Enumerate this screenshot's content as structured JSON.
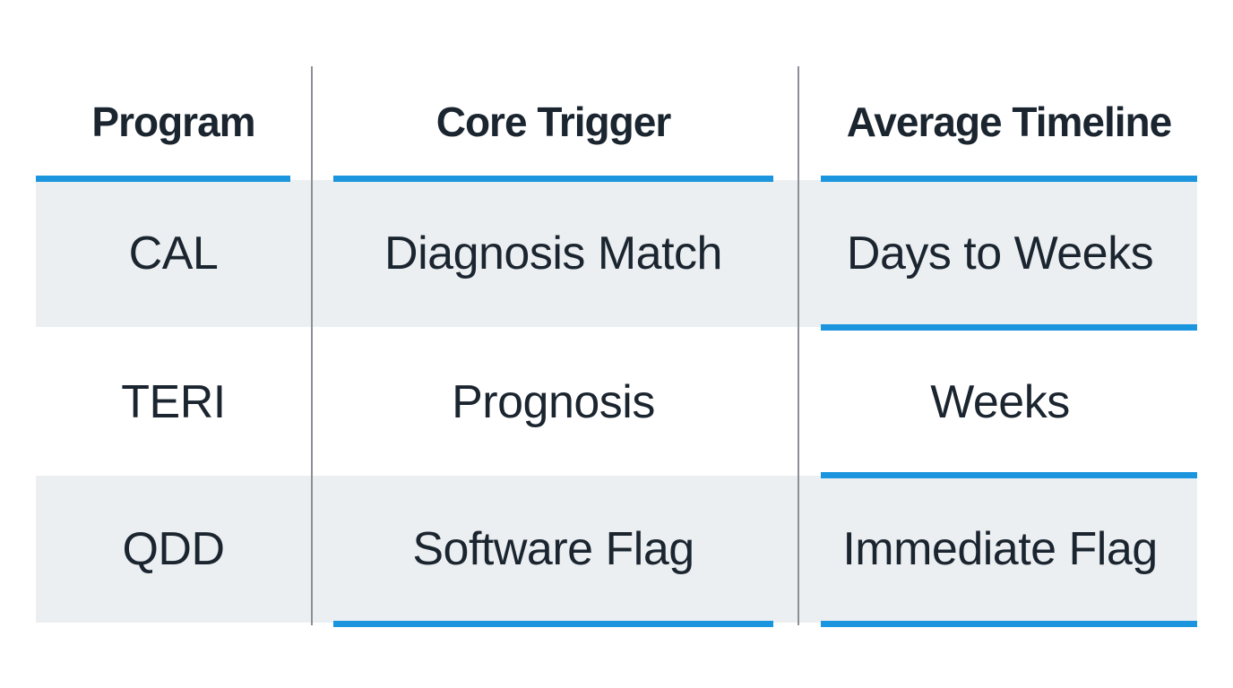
{
  "table": {
    "headers": [
      "Program",
      "Core Trigger",
      "Average Timeline"
    ],
    "rows": [
      [
        "CAL",
        "Diagnosis Match",
        "Days to Weeks"
      ],
      [
        "TERI",
        "Prognosis",
        "Weeks"
      ],
      [
        "QDD",
        "Software Flag",
        "Immediate Flag"
      ]
    ]
  },
  "colors": {
    "accent_rule": "#1a95de",
    "row_shade": "#eceff1",
    "text": "#1b2530",
    "divider": "#8c9096"
  }
}
